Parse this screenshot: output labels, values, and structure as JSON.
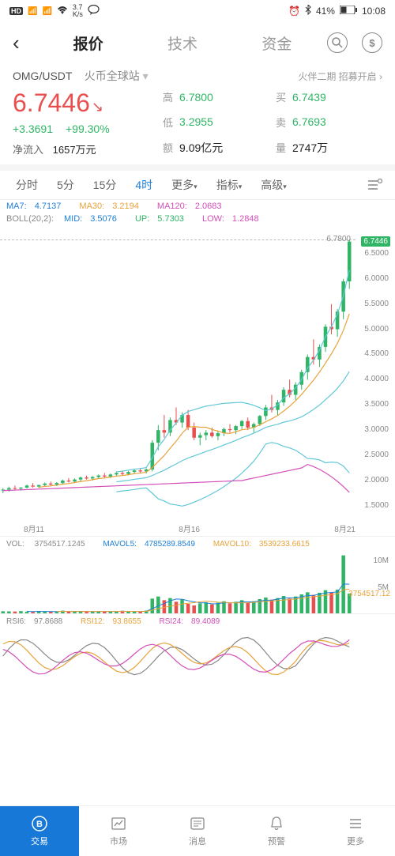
{
  "colors": {
    "up": "#30b566",
    "down": "#e84f4f",
    "maYellow": "#e8a23a",
    "maMagenta": "#d44fb8",
    "accent": "#1878d8",
    "le7fd6": "#1e7fd6",
    "cyan": "#60c8d8",
    "purple": "#a060c0",
    "gray": "#888888"
  },
  "status": {
    "hd": "HD",
    "signal1": "⁴ᴳ₁",
    "signal2": "⁴ᴳ₁",
    "wifi": "wifi",
    "speed_top": "3.7",
    "speed_bot": "K/s",
    "chat": "chat",
    "alarm": "⏰",
    "bt": "bt",
    "battery_pct": "41%",
    "battery_icon": "batt",
    "time": "10:08"
  },
  "navTabs": {
    "back": "‹",
    "tab1": "报价",
    "tab2": "技术",
    "tab3": "资金"
  },
  "pair": {
    "symbol": "OMG/USDT",
    "exchange": "火币全球站",
    "promo": "火伴二期  招募开启 ›"
  },
  "price": {
    "value": "6.7446",
    "arrow": "↘",
    "change_abs": "+3.3691",
    "change_pct": "+99.30%",
    "inflow_label": "净流入",
    "inflow_value": "1657万元",
    "high_label": "高",
    "high": "6.7800",
    "low_label": "低",
    "low": "3.2955",
    "amount_label": "额",
    "amount": "9.09亿元",
    "buy_label": "买",
    "buy": "6.7439",
    "sell_label": "卖",
    "sell": "6.7693",
    "vol_label": "量",
    "vol": "2747万"
  },
  "timeframes": {
    "t1": "分时",
    "t2": "5分",
    "t3": "15分",
    "t4": "4时",
    "t5": "更多",
    "t6": "指标",
    "t7": "高级"
  },
  "ma": {
    "ma7_label": "MA7:",
    "ma7": "4.7137",
    "ma30_label": "MA30:",
    "ma30": "3.2194",
    "ma120_label": "MA120:",
    "ma120": "2.0683"
  },
  "boll": {
    "label": "BOLL(20,2):",
    "mid_label": "MID:",
    "mid": "3.5076",
    "up_label": "UP:",
    "up": "5.7303",
    "low_label": "LOW:",
    "low": "1.2848"
  },
  "chart": {
    "ymin": 1.2,
    "ymax": 7.0,
    "top_ref": "6.7800",
    "yticks": [
      {
        "v": 6.7446,
        "label": "6.7446",
        "current": true
      },
      {
        "v": 6.5,
        "label": "6.5000"
      },
      {
        "v": 6.0,
        "label": "6.0000"
      },
      {
        "v": 5.5,
        "label": "5.5000"
      },
      {
        "v": 5.0,
        "label": "5.0000"
      },
      {
        "v": 4.5,
        "label": "4.5000"
      },
      {
        "v": 4.0,
        "label": "4.0000"
      },
      {
        "v": 3.5,
        "label": "3.5000"
      },
      {
        "v": 3.0,
        "label": "3.0000"
      },
      {
        "v": 2.5,
        "label": "2.5000"
      },
      {
        "v": 2.0,
        "label": "2.0000"
      },
      {
        "v": 1.5,
        "label": "1.5000"
      }
    ],
    "xticks": [
      "8月11",
      "8月16",
      "8月21"
    ],
    "candles": [
      {
        "o": 1.8,
        "h": 1.85,
        "l": 1.75,
        "c": 1.82,
        "up": true
      },
      {
        "o": 1.82,
        "h": 1.88,
        "l": 1.78,
        "c": 1.85,
        "up": true
      },
      {
        "o": 1.85,
        "h": 1.9,
        "l": 1.82,
        "c": 1.84,
        "up": false
      },
      {
        "o": 1.84,
        "h": 1.87,
        "l": 1.8,
        "c": 1.86,
        "up": true
      },
      {
        "o": 1.86,
        "h": 1.92,
        "l": 1.84,
        "c": 1.9,
        "up": true
      },
      {
        "o": 1.9,
        "h": 1.95,
        "l": 1.86,
        "c": 1.88,
        "up": false
      },
      {
        "o": 1.88,
        "h": 1.92,
        "l": 1.85,
        "c": 1.91,
        "up": true
      },
      {
        "o": 1.91,
        "h": 1.96,
        "l": 1.88,
        "c": 1.94,
        "up": true
      },
      {
        "o": 1.94,
        "h": 1.98,
        "l": 1.9,
        "c": 1.92,
        "up": false
      },
      {
        "o": 1.92,
        "h": 1.97,
        "l": 1.89,
        "c": 1.95,
        "up": true
      },
      {
        "o": 1.95,
        "h": 2.02,
        "l": 1.92,
        "c": 2.0,
        "up": true
      },
      {
        "o": 2.0,
        "h": 2.05,
        "l": 1.96,
        "c": 1.98,
        "up": false
      },
      {
        "o": 1.98,
        "h": 2.04,
        "l": 1.95,
        "c": 2.02,
        "up": true
      },
      {
        "o": 2.02,
        "h": 2.08,
        "l": 1.99,
        "c": 2.06,
        "up": true
      },
      {
        "o": 2.06,
        "h": 2.1,
        "l": 2.02,
        "c": 2.04,
        "up": false
      },
      {
        "o": 2.04,
        "h": 2.09,
        "l": 2.0,
        "c": 2.07,
        "up": true
      },
      {
        "o": 2.07,
        "h": 2.12,
        "l": 2.04,
        "c": 2.1,
        "up": true
      },
      {
        "o": 2.1,
        "h": 2.15,
        "l": 2.06,
        "c": 2.08,
        "up": false
      },
      {
        "o": 2.08,
        "h": 2.14,
        "l": 2.05,
        "c": 2.12,
        "up": true
      },
      {
        "o": 2.12,
        "h": 2.18,
        "l": 2.08,
        "c": 2.15,
        "up": true
      },
      {
        "o": 2.15,
        "h": 2.2,
        "l": 2.1,
        "c": 2.13,
        "up": false
      },
      {
        "o": 2.13,
        "h": 2.19,
        "l": 2.1,
        "c": 2.17,
        "up": true
      },
      {
        "o": 2.17,
        "h": 2.22,
        "l": 2.13,
        "c": 2.2,
        "up": true
      },
      {
        "o": 2.2,
        "h": 2.25,
        "l": 2.15,
        "c": 2.18,
        "up": false
      },
      {
        "o": 2.18,
        "h": 2.24,
        "l": 2.14,
        "c": 2.22,
        "up": true
      },
      {
        "o": 2.22,
        "h": 2.8,
        "l": 2.18,
        "c": 2.75,
        "up": true
      },
      {
        "o": 2.75,
        "h": 3.1,
        "l": 2.6,
        "c": 3.0,
        "up": true
      },
      {
        "o": 3.0,
        "h": 3.3,
        "l": 2.85,
        "c": 2.95,
        "up": false
      },
      {
        "o": 2.95,
        "h": 3.25,
        "l": 2.88,
        "c": 3.2,
        "up": true
      },
      {
        "o": 3.2,
        "h": 3.45,
        "l": 3.1,
        "c": 3.15,
        "up": false
      },
      {
        "o": 3.15,
        "h": 3.35,
        "l": 3.05,
        "c": 3.3,
        "up": true
      },
      {
        "o": 3.3,
        "h": 3.4,
        "l": 3.0,
        "c": 3.05,
        "up": false
      },
      {
        "o": 3.05,
        "h": 3.15,
        "l": 2.8,
        "c": 2.85,
        "up": false
      },
      {
        "o": 2.85,
        "h": 2.95,
        "l": 2.7,
        "c": 2.9,
        "up": true
      },
      {
        "o": 2.9,
        "h": 3.0,
        "l": 2.8,
        "c": 2.95,
        "up": true
      },
      {
        "o": 2.95,
        "h": 3.05,
        "l": 2.85,
        "c": 2.88,
        "up": false
      },
      {
        "o": 2.88,
        "h": 2.98,
        "l": 2.8,
        "c": 2.94,
        "up": true
      },
      {
        "o": 2.94,
        "h": 3.05,
        "l": 2.88,
        "c": 3.02,
        "up": true
      },
      {
        "o": 3.02,
        "h": 3.12,
        "l": 2.95,
        "c": 3.0,
        "up": false
      },
      {
        "o": 3.0,
        "h": 3.1,
        "l": 2.92,
        "c": 3.08,
        "up": true
      },
      {
        "o": 3.08,
        "h": 3.2,
        "l": 3.02,
        "c": 3.18,
        "up": true
      },
      {
        "o": 3.18,
        "h": 3.25,
        "l": 3.0,
        "c": 3.05,
        "up": false
      },
      {
        "o": 3.05,
        "h": 3.15,
        "l": 2.95,
        "c": 3.12,
        "up": true
      },
      {
        "o": 3.12,
        "h": 3.3,
        "l": 3.08,
        "c": 3.28,
        "up": true
      },
      {
        "o": 3.28,
        "h": 3.5,
        "l": 3.2,
        "c": 3.45,
        "up": true
      },
      {
        "o": 3.45,
        "h": 3.7,
        "l": 3.35,
        "c": 3.4,
        "up": false
      },
      {
        "o": 3.4,
        "h": 3.6,
        "l": 3.3,
        "c": 3.55,
        "up": true
      },
      {
        "o": 3.55,
        "h": 3.85,
        "l": 3.48,
        "c": 3.8,
        "up": true
      },
      {
        "o": 3.8,
        "h": 4.0,
        "l": 3.65,
        "c": 3.7,
        "up": false
      },
      {
        "o": 3.7,
        "h": 3.95,
        "l": 3.6,
        "c": 3.9,
        "up": true
      },
      {
        "o": 3.9,
        "h": 4.2,
        "l": 3.8,
        "c": 4.15,
        "up": true
      },
      {
        "o": 4.15,
        "h": 4.5,
        "l": 4.0,
        "c": 4.45,
        "up": true
      },
      {
        "o": 4.45,
        "h": 4.8,
        "l": 4.3,
        "c": 4.4,
        "up": false
      },
      {
        "o": 4.4,
        "h": 4.7,
        "l": 4.25,
        "c": 4.65,
        "up": true
      },
      {
        "o": 4.65,
        "h": 5.1,
        "l": 4.55,
        "c": 5.05,
        "up": true
      },
      {
        "o": 5.05,
        "h": 5.5,
        "l": 4.9,
        "c": 5.0,
        "up": false
      },
      {
        "o": 5.0,
        "h": 5.4,
        "l": 4.85,
        "c": 5.35,
        "up": true
      },
      {
        "o": 5.35,
        "h": 6.0,
        "l": 5.2,
        "c": 5.95,
        "up": true
      },
      {
        "o": 5.95,
        "h": 6.78,
        "l": 5.8,
        "c": 6.74,
        "up": true
      }
    ],
    "ma7_line": "yellow",
    "ma30_line": "magenta",
    "boll_up": "cyan",
    "boll_mid": "cyan",
    "boll_low": "cyan"
  },
  "volume": {
    "vol_label": "VOL:",
    "vol": "3754517.1245",
    "mavol5_label": "MAVOL5:",
    "mavol5": "4785289.8549",
    "mavol10_label": "MAVOL10:",
    "mavol10": "3539233.6615",
    "ymax": 12000000,
    "yticks": [
      {
        "v": 10000000,
        "label": "10M"
      },
      {
        "v": 5000000,
        "label": "5M"
      }
    ],
    "current_label": "3754517.12",
    "bars": [
      400000,
      380000,
      350000,
      420000,
      300000,
      280000,
      450000,
      320000,
      380000,
      290000,
      500000,
      310000,
      360000,
      410000,
      280000,
      350000,
      420000,
      310000,
      390000,
      340000,
      480000,
      320000,
      380000,
      290000,
      520000,
      2800000,
      3200000,
      2500000,
      2900000,
      2200000,
      2600000,
      1800000,
      1500000,
      1900000,
      2100000,
      1700000,
      2000000,
      2300000,
      1900000,
      2200000,
      2500000,
      2000000,
      2300000,
      2700000,
      3000000,
      2600000,
      2900000,
      3300000,
      2800000,
      3200000,
      3600000,
      4000000,
      3500000,
      3900000,
      4400000,
      4000000,
      4500000,
      11000000,
      3754517
    ]
  },
  "rsi": {
    "rsi6_label": "RSI6:",
    "rsi6": "97.8688",
    "rsi12_label": "RSI12:",
    "rsi12": "93.8655",
    "rsi24_label": "RSI24:",
    "rsi24": "89.4089"
  },
  "bottomNav": {
    "n1": "交易",
    "n2": "市场",
    "n3": "消息",
    "n4": "预警",
    "n5": "更多"
  }
}
